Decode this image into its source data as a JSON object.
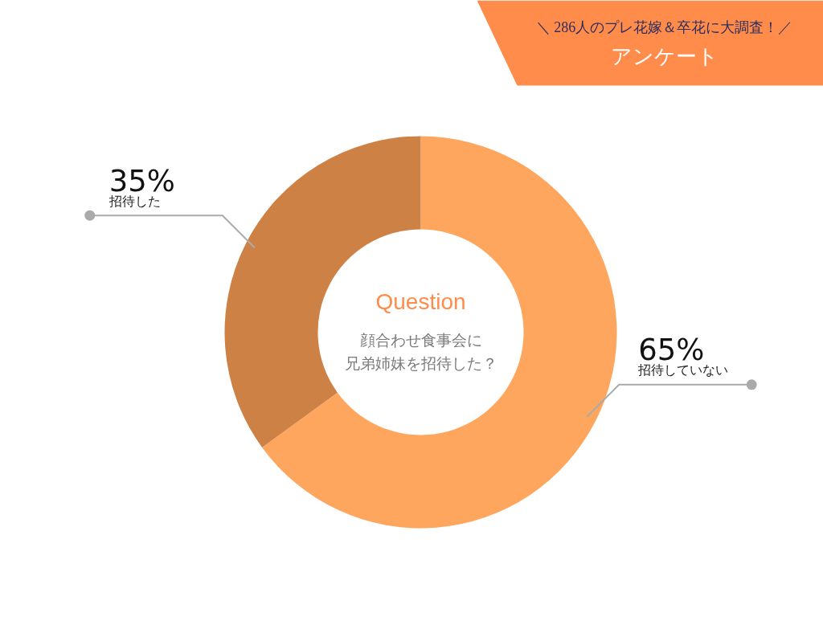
{
  "chart_data": {
    "type": "donut",
    "title": "＼ 286人のプレ花嫁＆卒花に大調査！／",
    "subtitle": "アンケート",
    "annotations": [
      "Question",
      "顔合わせ食事会に",
      "兄弟姉妹を招待した？"
    ],
    "categories": [
      "招待していない",
      "招待した"
    ],
    "values": [
      65,
      35
    ],
    "value_labels": [
      "65%",
      "35%"
    ],
    "colors": [
      "#ffa65e",
      "#cd8145"
    ]
  }
}
